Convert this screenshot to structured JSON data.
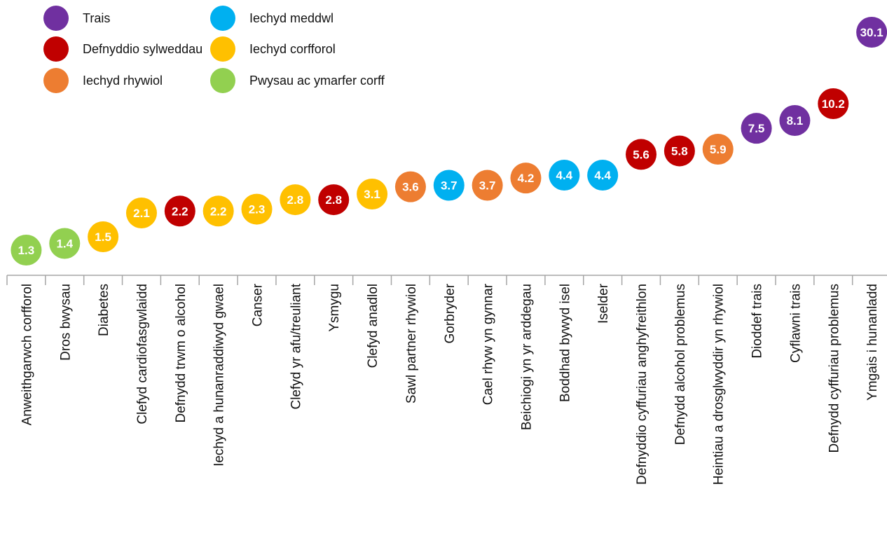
{
  "legend": [
    {
      "label": "Trais",
      "color": "#7030A0"
    },
    {
      "label": "Defnyddio sylweddau",
      "color": "#C00000"
    },
    {
      "label": "Iechyd rhywiol",
      "color": "#ED7D31"
    },
    {
      "label": "Iechyd meddwl",
      "color": "#00B0F0"
    },
    {
      "label": "Iechyd corfforol",
      "color": "#FFC000"
    },
    {
      "label": "Pwysau ac ymarfer corff",
      "color": "#92D050"
    }
  ],
  "chart_data": {
    "type": "scatter",
    "title": "",
    "xlabel": "",
    "ylabel": "",
    "ylim": [
      0,
      30.1
    ],
    "grid": false,
    "legend_position": "top-left",
    "points": [
      {
        "category": "Anweithgarwch corfforol",
        "value": 1.3,
        "label": "1.3",
        "group": "Pwysau ac ymarfer corff",
        "color": "#92D050"
      },
      {
        "category": "Dros bwysau",
        "value": 1.4,
        "label": "1.4",
        "group": "Pwysau ac ymarfer corff",
        "color": "#92D050"
      },
      {
        "category": "Diabetes",
        "value": 1.5,
        "label": "1.5",
        "group": "Iechyd corfforol",
        "color": "#FFC000"
      },
      {
        "category": "Clefyd cardiofasgwlaidd",
        "value": 2.1,
        "label": "2.1",
        "group": "Iechyd corfforol",
        "color": "#FFC000"
      },
      {
        "category": "Defnydd trwm o alcohol",
        "value": 2.2,
        "label": "2.2",
        "group": "Defnyddio sylweddau",
        "color": "#C00000"
      },
      {
        "category": "Iechyd a hunanraddiwyd gwael",
        "value": 2.2,
        "label": "2.2",
        "group": "Iechyd corfforol",
        "color": "#FFC000"
      },
      {
        "category": "Canser",
        "value": 2.3,
        "label": "2.3",
        "group": "Iechyd corfforol",
        "color": "#FFC000"
      },
      {
        "category": "Clefyd yr afu/treuliant",
        "value": 2.8,
        "label": "2.8",
        "group": "Iechyd corfforol",
        "color": "#FFC000"
      },
      {
        "category": "Ysmygu",
        "value": 2.8,
        "label": "2.8",
        "group": "Defnyddio sylweddau",
        "color": "#C00000"
      },
      {
        "category": "Clefyd anadlol",
        "value": 3.1,
        "label": "3.1",
        "group": "Iechyd corfforol",
        "color": "#FFC000"
      },
      {
        "category": "Sawl partner rhywiol",
        "value": 3.6,
        "label": "3.6",
        "group": "Iechyd rhywiol",
        "color": "#ED7D31"
      },
      {
        "category": "Gorbryder",
        "value": 3.7,
        "label": "3.7",
        "group": "Iechyd meddwl",
        "color": "#00B0F0"
      },
      {
        "category": "Cael rhyw yn gynnar",
        "value": 3.7,
        "label": "3.7",
        "group": "Iechyd rhywiol",
        "color": "#ED7D31"
      },
      {
        "category": "Beichiogi yn yr arddegau",
        "value": 4.2,
        "label": "4.2",
        "group": "Iechyd rhywiol",
        "color": "#ED7D31"
      },
      {
        "category": "Boddhad bywyd isel",
        "value": 4.4,
        "label": "4.4",
        "group": "Iechyd meddwl",
        "color": "#00B0F0"
      },
      {
        "category": "Iselder",
        "value": 4.4,
        "label": "4.4",
        "group": "Iechyd meddwl",
        "color": "#00B0F0"
      },
      {
        "category": "Defnyddio cyffuriau anghyfreithlon",
        "value": 5.6,
        "label": "5.6",
        "group": "Defnyddio sylweddau",
        "color": "#C00000"
      },
      {
        "category": "Defnydd alcohol problemus",
        "value": 5.8,
        "label": "5.8",
        "group": "Defnyddio sylweddau",
        "color": "#C00000"
      },
      {
        "category": "Heintiau a drosglwyddir yn rhywiol",
        "value": 5.9,
        "label": "5.9",
        "group": "Iechyd rhywiol",
        "color": "#ED7D31"
      },
      {
        "category": "Dioddef trais",
        "value": 7.5,
        "label": "7.5",
        "group": "Trais",
        "color": "#7030A0"
      },
      {
        "category": "Cyflawni trais",
        "value": 8.1,
        "label": "8.1",
        "group": "Trais",
        "color": "#7030A0"
      },
      {
        "category": "Defnydd cyffuriau problemus",
        "value": 10.2,
        "label": "10.2",
        "group": "Defnyddio sylweddau",
        "color": "#C00000"
      },
      {
        "category": "Ymgais i hunanladd",
        "value": 30.1,
        "label": "30.1",
        "group": "Trais",
        "color": "#7030A0"
      }
    ]
  }
}
